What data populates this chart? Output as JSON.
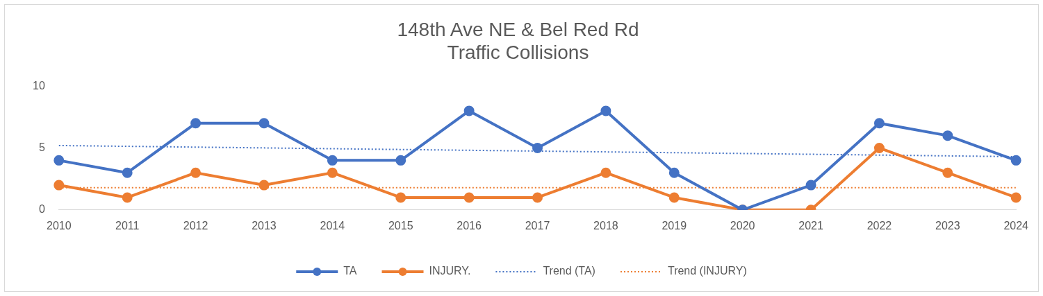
{
  "chart_data": {
    "type": "line",
    "title": "148th Ave NE & Bel Red Rd\nTraffic Collisions",
    "categories": [
      "2010",
      "2011",
      "2012",
      "2013",
      "2014",
      "2015",
      "2016",
      "2017",
      "2018",
      "2019",
      "2020",
      "2021",
      "2022",
      "2023",
      "2024"
    ],
    "series": [
      {
        "name": "TA",
        "color": "#4472c4",
        "marker": "circle",
        "line_style": "solid",
        "values": [
          4,
          3,
          7,
          7,
          4,
          4,
          8,
          5,
          8,
          3,
          0,
          2,
          7,
          6,
          4
        ]
      },
      {
        "name": "INJURY.",
        "color": "#ed7d31",
        "marker": "circle",
        "line_style": "solid",
        "values": [
          2,
          1,
          3,
          2,
          3,
          1,
          1,
          1,
          3,
          1,
          0,
          0,
          5,
          3,
          1
        ]
      },
      {
        "name": "Trend (TA)",
        "color": "#4472c4",
        "marker": "none",
        "line_style": "dotted",
        "values": [
          5.2,
          null,
          null,
          null,
          null,
          null,
          null,
          null,
          null,
          null,
          null,
          null,
          null,
          null,
          4.3
        ]
      },
      {
        "name": "Trend (INJURY)",
        "color": "#ed7d31",
        "marker": "none",
        "line_style": "dotted",
        "values": [
          1.8,
          null,
          null,
          null,
          null,
          null,
          null,
          null,
          null,
          null,
          null,
          null,
          null,
          null,
          1.8
        ]
      }
    ],
    "ylim": [
      0,
      10
    ],
    "yticks": [
      0,
      5,
      10
    ],
    "grid": false,
    "legend": "bottom"
  }
}
